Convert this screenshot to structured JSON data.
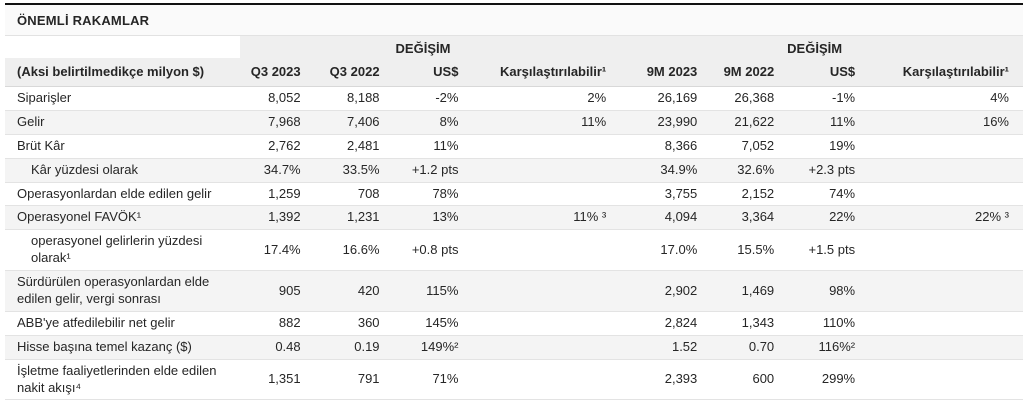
{
  "title": "ÖNEMLİ RAKAMLAR",
  "table": {
    "change_header_q3": "DEĞİŞİM",
    "change_header_9m": "DEĞİŞİM",
    "columns": [
      "(Aksi belirtilmedikçe milyon $)",
      "Q3 2023",
      "Q3 2022",
      "US$",
      "Karşılaştırılabilir¹",
      "9M 2023",
      "9M 2022",
      "US$",
      "Karşılaştırılabilir¹"
    ],
    "rows": [
      {
        "label": "Siparişler",
        "indent": false,
        "values": [
          "8,052",
          "8,188",
          "-2%",
          "2%",
          "26,169",
          "26,368",
          "-1%",
          "4%"
        ]
      },
      {
        "label": "Gelir",
        "indent": false,
        "values": [
          "7,968",
          "7,406",
          "8%",
          "11%",
          "23,990",
          "21,622",
          "11%",
          "16%"
        ]
      },
      {
        "label": "Brüt Kâr",
        "indent": false,
        "values": [
          "2,762",
          "2,481",
          "11%",
          "",
          "8,366",
          "7,052",
          "19%",
          ""
        ]
      },
      {
        "label": "Kâr yüzdesi olarak",
        "indent": true,
        "values": [
          "34.7%",
          "33.5%",
          "+1.2 pts",
          "",
          "34.9%",
          "32.6%",
          "+2.3 pts",
          ""
        ]
      },
      {
        "label": "Operasyonlardan elde edilen gelir",
        "indent": false,
        "values": [
          "1,259",
          "708",
          "78%",
          "",
          "3,755",
          "2,152",
          "74%",
          ""
        ]
      },
      {
        "label": "Operasyonel FAVÖK¹",
        "indent": false,
        "values": [
          "1,392",
          "1,231",
          "13%",
          "11% ³",
          "4,094",
          "3,364",
          "22%",
          "22% ³"
        ]
      },
      {
        "label": "operasyonel gelirlerin yüzdesi olarak¹",
        "indent": true,
        "values": [
          "17.4%",
          "16.6%",
          "+0.8 pts",
          "",
          "17.0%",
          "15.5%",
          "+1.5 pts",
          ""
        ]
      },
      {
        "label": "Sürdürülen operasyonlardan elde edilen gelir, vergi sonrası",
        "indent": false,
        "values": [
          "905",
          "420",
          "115%",
          "",
          "2,902",
          "1,469",
          "98%",
          ""
        ]
      },
      {
        "label": "ABB'ye atfedilebilir net gelir",
        "indent": false,
        "values": [
          "882",
          "360",
          "145%",
          "",
          "2,824",
          "1,343",
          "110%",
          ""
        ]
      },
      {
        "label": "Hisse başına temel kazanç ($)",
        "indent": false,
        "values": [
          "0.48",
          "0.19",
          "149%²",
          "",
          "1.52",
          "0.70",
          "116%²",
          ""
        ]
      },
      {
        "label": "İşletme faaliyetlerinden elde edilen nakit akışı⁴",
        "indent": false,
        "values": [
          "1,351",
          "791",
          "71%",
          "",
          "2,393",
          "600",
          "299%",
          ""
        ]
      }
    ]
  }
}
